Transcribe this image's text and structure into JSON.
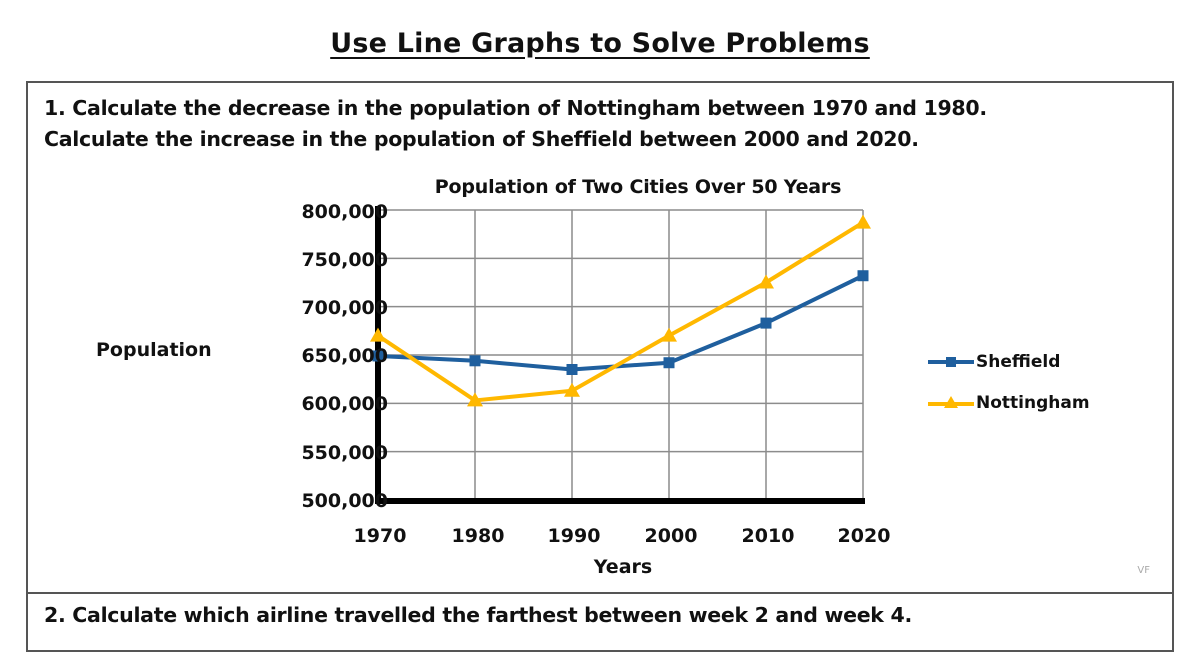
{
  "page": {
    "title": "Use Line Graphs to Solve Problems"
  },
  "question1": {
    "line1": "1. Calculate the decrease in the population of Nottingham between 1970 and 1980.",
    "line2": "Calculate the increase in the population of Sheffield between 2000 and 2020."
  },
  "question2": {
    "line1": "2. Calculate which airline travelled the farthest between week 2 and week 4."
  },
  "watermark": "VF",
  "chart": {
    "title": "Population of Two Cities Over 50 Years",
    "ylabel": "Population",
    "xlabel": "Years",
    "y_ticks": [
      "800,000",
      "750,000",
      "700,000",
      "650,000",
      "600,000",
      "550,000",
      "500,000"
    ],
    "x_ticks": [
      "1970",
      "1980",
      "1990",
      "2000",
      "2010",
      "2020"
    ],
    "legend": [
      {
        "name": "Sheffield",
        "color": "#1f5f9e",
        "marker": "square"
      },
      {
        "name": "Nottingham",
        "color": "#ffb800",
        "marker": "triangle"
      }
    ]
  },
  "chart_data": {
    "type": "line",
    "title": "Population of Two Cities Over 50 Years",
    "xlabel": "Years",
    "ylabel": "Population",
    "categories": [
      "1970",
      "1980",
      "1990",
      "2000",
      "2010",
      "2020"
    ],
    "series": [
      {
        "name": "Sheffield",
        "color": "#1f5f9e",
        "marker": "square",
        "values": [
          649000,
          644000,
          635000,
          642000,
          683000,
          732000
        ]
      },
      {
        "name": "Nottingham",
        "color": "#ffb800",
        "marker": "triangle",
        "values": [
          670000,
          603000,
          613000,
          670000,
          725000,
          787000
        ]
      }
    ],
    "ylim": [
      500000,
      800000
    ],
    "y_tick_step": 50000,
    "grid": true,
    "legend_position": "right"
  }
}
